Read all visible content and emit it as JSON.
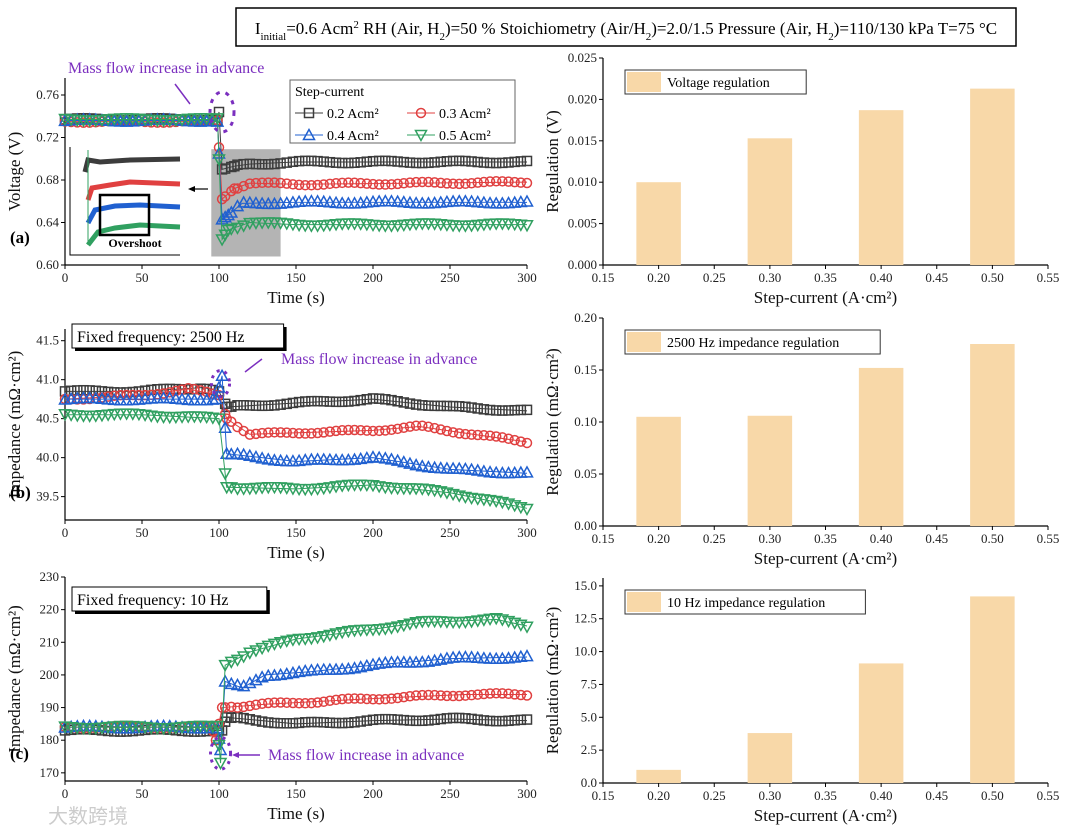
{
  "header": {
    "parts": [
      {
        "t": "I"
      },
      {
        "t": "initial",
        "sub": true
      },
      {
        "t": "=0.6 Acm"
      },
      {
        "t": "2",
        "sup": true
      },
      {
        "t": "   RH (Air, H"
      },
      {
        "t": "2",
        "sub": true
      },
      {
        "t": ")=50 %  Stoichiometry (Air/H"
      },
      {
        "t": "2",
        "sub": true
      },
      {
        "t": ")=2.0/1.5   Pressure (Air, H"
      },
      {
        "t": "2",
        "sub": true
      },
      {
        "t": ")=110/130 kPa    T=75 °C"
      }
    ]
  },
  "colors": {
    "s02": "#3c3c3c",
    "s03": "#e04040",
    "s04": "#2060d0",
    "s05": "#30a060",
    "bar": "#f8d8a8",
    "annotation": "#7b2fbf",
    "shade": "#b4b4b4"
  },
  "watermark": "大数跨境",
  "chart_data": [
    {
      "type": "line",
      "panel": "(a)",
      "xlabel": "Time (s)",
      "ylabel": "Voltage (V)",
      "xlim": [
        0,
        300
      ],
      "ylim": [
        0.6,
        0.776
      ],
      "xticks": [
        "0",
        "50",
        "100",
        "150",
        "200",
        "250",
        "300"
      ],
      "yticks": [
        "0.60",
        "0.64",
        "0.68",
        "0.72",
        "0.76"
      ],
      "annotation": "Mass flow increase in advance",
      "inset_label": "Overshoot",
      "legend_title": "Step-current",
      "series": [
        {
          "name": "0.2 Acm²",
          "marker": "square",
          "color": "#3c3c3c",
          "points": [
            [
              0,
              0.737
            ],
            [
              99,
              0.737
            ],
            [
              100,
              0.744
            ],
            [
              102,
              0.69
            ],
            [
              110,
              0.693
            ],
            [
              120,
              0.695
            ],
            [
              150,
              0.697
            ],
            [
              300,
              0.697
            ]
          ]
        },
        {
          "name": "0.3 Acm²",
          "marker": "circle",
          "color": "#e04040",
          "points": [
            [
              0,
              0.735
            ],
            [
              99,
              0.735
            ],
            [
              102,
              0.662
            ],
            [
              110,
              0.672
            ],
            [
              120,
              0.677
            ],
            [
              150,
              0.676
            ],
            [
              300,
              0.678
            ]
          ]
        },
        {
          "name": "0.4 Acm²",
          "marker": "triangle-up",
          "color": "#2060d0",
          "points": [
            [
              0,
              0.736
            ],
            [
              99,
              0.736
            ],
            [
              102,
              0.643
            ],
            [
              106,
              0.647
            ],
            [
              115,
              0.658
            ],
            [
              150,
              0.659
            ],
            [
              300,
              0.659
            ]
          ]
        },
        {
          "name": "0.5 Acm²",
          "marker": "triangle-down",
          "color": "#30a060",
          "points": [
            [
              0,
              0.737
            ],
            [
              99,
              0.737
            ],
            [
              102,
              0.624
            ],
            [
              106,
              0.633
            ],
            [
              120,
              0.64
            ],
            [
              150,
              0.638
            ],
            [
              300,
              0.638
            ]
          ]
        }
      ]
    },
    {
      "type": "bar",
      "xlabel": "Step-current (A·cm²)",
      "ylabel": "Regulation (V)",
      "xlim": [
        0.15,
        0.55
      ],
      "ylim": [
        0,
        0.025
      ],
      "xticks": [
        "0.15",
        "0.20",
        "0.25",
        "0.30",
        "0.35",
        "0.40",
        "0.45",
        "0.50",
        "0.55"
      ],
      "yticks": [
        "0.000",
        "0.005",
        "0.010",
        "0.015",
        "0.020",
        "0.025"
      ],
      "legend": "Voltage regulation",
      "categories": [
        0.2,
        0.3,
        0.4,
        0.5
      ],
      "values": [
        0.01,
        0.0153,
        0.0187,
        0.0213
      ]
    },
    {
      "type": "line",
      "panel": "(b)",
      "xlabel": "Time (s)",
      "ylabel": "Impedance (mΩ·cm²)",
      "xlim": [
        0,
        300
      ],
      "ylim": [
        39.2,
        41.65
      ],
      "xticks": [
        "0",
        "50",
        "100",
        "150",
        "200",
        "250",
        "300"
      ],
      "yticks": [
        "39.5",
        "40.0",
        "40.5",
        "41.0",
        "41.5"
      ],
      "label_box": "Fixed frequency: 2500 Hz",
      "annotation": "Mass flow increase in advance",
      "series": [
        {
          "name": "0.2 Acm²",
          "marker": "square",
          "color": "#3c3c3c",
          "points": [
            [
              0,
              40.85
            ],
            [
              50,
              40.85
            ],
            [
              90,
              40.9
            ],
            [
              100,
              40.85
            ],
            [
              105,
              40.65
            ],
            [
              150,
              40.7
            ],
            [
              200,
              40.75
            ],
            [
              250,
              40.65
            ],
            [
              300,
              40.6
            ]
          ]
        },
        {
          "name": "0.3 Acm²",
          "marker": "circle",
          "color": "#e04040",
          "points": [
            [
              0,
              40.75
            ],
            [
              50,
              40.8
            ],
            [
              80,
              40.88
            ],
            [
              100,
              40.8
            ],
            [
              105,
              40.5
            ],
            [
              120,
              40.3
            ],
            [
              200,
              40.35
            ],
            [
              230,
              40.4
            ],
            [
              300,
              40.2
            ]
          ]
        },
        {
          "name": "0.4 Acm²",
          "marker": "triangle-up",
          "color": "#2060d0",
          "points": [
            [
              0,
              40.75
            ],
            [
              98,
              40.75
            ],
            [
              102,
              41.05
            ],
            [
              105,
              40.05
            ],
            [
              150,
              39.95
            ],
            [
              200,
              40.0
            ],
            [
              250,
              39.85
            ],
            [
              300,
              39.8
            ]
          ]
        },
        {
          "name": "0.5 Acm²",
          "marker": "triangle-down",
          "color": "#30a060",
          "points": [
            [
              0,
              40.55
            ],
            [
              50,
              40.55
            ],
            [
              100,
              40.5
            ],
            [
              105,
              39.62
            ],
            [
              150,
              39.6
            ],
            [
              200,
              39.65
            ],
            [
              250,
              39.55
            ],
            [
              300,
              39.35
            ]
          ]
        }
      ]
    },
    {
      "type": "bar",
      "xlabel": "Step-current (A·cm²)",
      "ylabel": "Regulation (mΩ·cm²)",
      "xlim": [
        0.15,
        0.55
      ],
      "ylim": [
        0,
        0.2
      ],
      "xticks": [
        "0.15",
        "0.20",
        "0.25",
        "0.30",
        "0.35",
        "0.40",
        "0.45",
        "0.50",
        "0.55"
      ],
      "yticks": [
        "0.00",
        "0.05",
        "0.10",
        "0.15",
        "0.20"
      ],
      "legend": "2500 Hz impedance regulation",
      "categories": [
        0.2,
        0.3,
        0.4,
        0.5
      ],
      "values": [
        0.105,
        0.106,
        0.152,
        0.175
      ]
    },
    {
      "type": "line",
      "panel": "(c)",
      "xlabel": "Time (s)",
      "ylabel": "Impedance (mΩ·cm²)",
      "xlim": [
        0,
        300
      ],
      "ylim": [
        167.5,
        230
      ],
      "xticks": [
        "0",
        "50",
        "100",
        "150",
        "200",
        "250",
        "300"
      ],
      "yticks": [
        "170",
        "180",
        "190",
        "200",
        "210",
        "220",
        "230"
      ],
      "label_box": "Fixed frequency: 10 Hz",
      "annotation": "Mass flow increase in advance",
      "series": [
        {
          "name": "0.2 Acm²",
          "marker": "square",
          "color": "#3c3c3c",
          "points": [
            [
              0,
              183
            ],
            [
              99,
              183
            ],
            [
              102,
              183
            ],
            [
              105,
              187
            ],
            [
              150,
              185
            ],
            [
              200,
              186
            ],
            [
              250,
              186.5
            ],
            [
              300,
              186
            ]
          ]
        },
        {
          "name": "0.3 Acm²",
          "marker": "circle",
          "color": "#e04040",
          "points": [
            [
              0,
              184
            ],
            [
              95,
              184
            ],
            [
              98,
              180
            ],
            [
              102,
              190
            ],
            [
              130,
              191
            ],
            [
              170,
              192
            ],
            [
              210,
              193
            ],
            [
              260,
              194
            ],
            [
              300,
              194
            ]
          ]
        },
        {
          "name": "0.4 Acm²",
          "marker": "triangle-up",
          "color": "#2060d0",
          "points": [
            [
              0,
              184
            ],
            [
              99,
              184
            ],
            [
              101,
              177
            ],
            [
              104,
              198
            ],
            [
              115,
              196
            ],
            [
              130,
              200
            ],
            [
              160,
              201
            ],
            [
              200,
              203
            ],
            [
              250,
              205
            ],
            [
              300,
              205.5
            ]
          ]
        },
        {
          "name": "0.5 Acm²",
          "marker": "triangle-down",
          "color": "#30a060",
          "points": [
            [
              0,
              184
            ],
            [
              99,
              184
            ],
            [
              101,
              173
            ],
            [
              104,
              203
            ],
            [
              120,
              207
            ],
            [
              150,
              211
            ],
            [
              200,
              214
            ],
            [
              230,
              216
            ],
            [
              280,
              217
            ],
            [
              300,
              215
            ]
          ]
        }
      ]
    },
    {
      "type": "bar",
      "xlabel": "Step-current (A·cm²)",
      "ylabel": "Regulation (mΩ·cm²)",
      "xlim": [
        0.15,
        0.55
      ],
      "ylim": [
        0,
        15.6
      ],
      "xticks": [
        "0.15",
        "0.20",
        "0.25",
        "0.30",
        "0.35",
        "0.40",
        "0.45",
        "0.50",
        "0.55"
      ],
      "yticks": [
        "0.0",
        "2.5",
        "5.0",
        "7.5",
        "10.0",
        "12.5",
        "15.0"
      ],
      "legend": "10 Hz impedance regulation",
      "categories": [
        0.2,
        0.3,
        0.4,
        0.5
      ],
      "values": [
        1.0,
        3.8,
        9.1,
        14.2
      ]
    }
  ]
}
